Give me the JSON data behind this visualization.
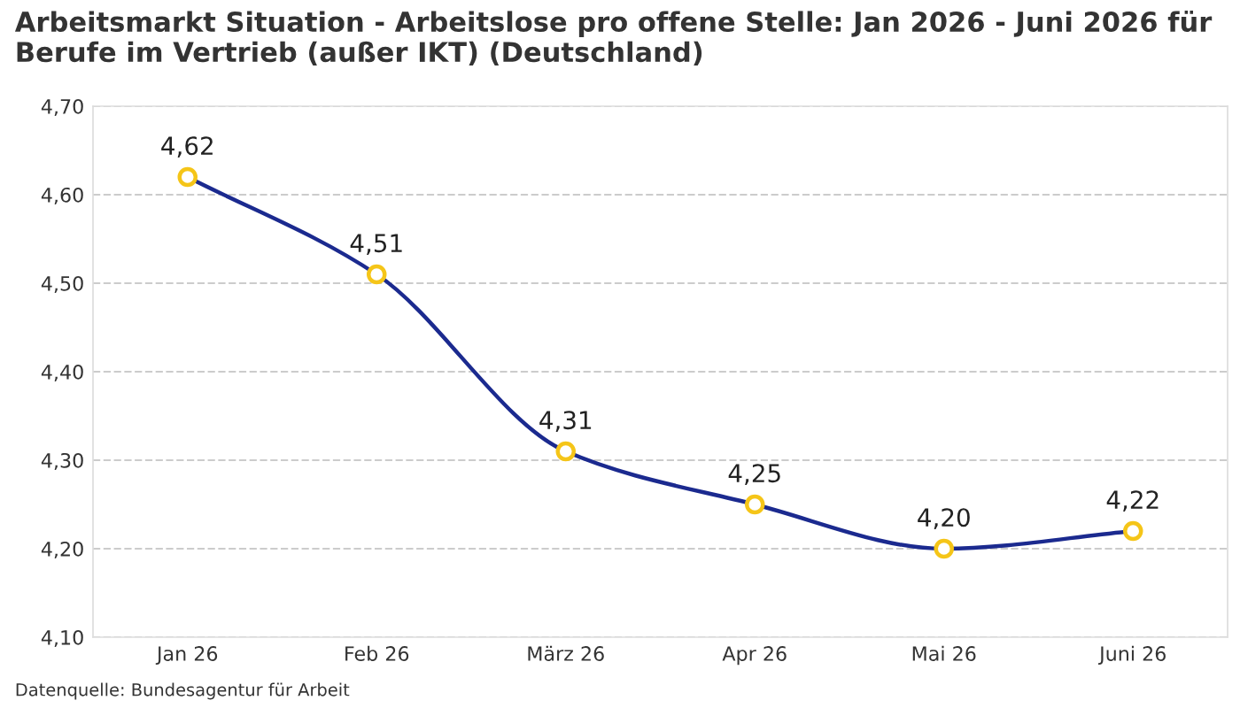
{
  "chart_data": {
    "type": "line",
    "title": "Arbeitsmarkt Situation - Arbeitslose pro offene Stelle: Jan 2026 - Juni 2026 für Berufe im Vertrieb (außer IKT) (Deutschland)",
    "categories": [
      "Jan 26",
      "Feb 26",
      "März 26",
      "Apr 26",
      "Mai 26",
      "Juni 26"
    ],
    "series": [
      {
        "color": "#1b2a8f",
        "values": [
          4.62,
          4.51,
          4.31,
          4.25,
          4.2,
          4.22
        ],
        "value_labels": [
          "4,62",
          "4,51",
          "4,31",
          "4,25",
          "4,20",
          "4,22"
        ]
      }
    ],
    "ylim": [
      4.1,
      4.7
    ],
    "yticks": [
      {
        "value": 4.1,
        "label": "4,10"
      },
      {
        "value": 4.2,
        "label": "4,20"
      },
      {
        "value": 4.3,
        "label": "4,30"
      },
      {
        "value": 4.4,
        "label": "4,40"
      },
      {
        "value": 4.5,
        "label": "4,50"
      },
      {
        "value": 4.6,
        "label": "4,60"
      },
      {
        "value": 4.7,
        "label": "4,70"
      }
    ],
    "grid": "y",
    "marker": "circle",
    "line_style": "solid",
    "legend": false,
    "annotations": [
      "Datenquelle: Bundesagentur für Arbeit"
    ]
  }
}
